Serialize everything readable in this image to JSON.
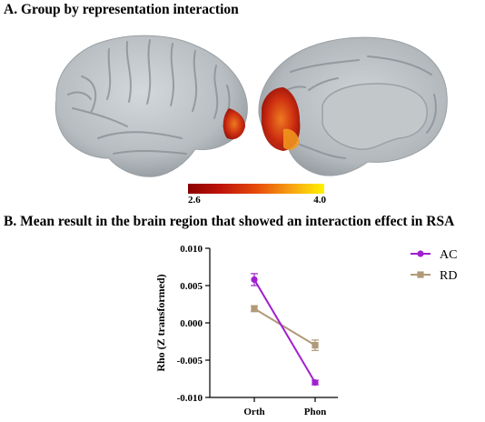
{
  "panel_a": {
    "title": "A. Group by representation interaction",
    "colorbar": {
      "min_label": "2.6",
      "max_label": "4.0",
      "colors": [
        "#8b0000",
        "#c0150a",
        "#e64a0a",
        "#f7a012",
        "#fff200"
      ]
    }
  },
  "panel_b": {
    "title": "B. Mean result in the brain region that showed an interaction effect in RSA"
  },
  "chart_data": {
    "type": "line",
    "categories": [
      "Orth",
      "Phon"
    ],
    "ylabel": "Rho (Z transformed)",
    "xlabel": "",
    "ylim": [
      -0.01,
      0.01
    ],
    "yticks": [
      "0.010",
      "0.005",
      "0.000",
      "-0.005",
      "-0.010"
    ],
    "ytick_values": [
      0.01,
      0.005,
      0.0,
      -0.005,
      -0.01
    ],
    "legend_position": "right",
    "series": [
      {
        "name": "AC",
        "color": "#a020d0",
        "marker": "circle",
        "values": [
          0.0058,
          -0.008
        ],
        "errors": [
          0.0008,
          0.0003
        ]
      },
      {
        "name": "RD",
        "color": "#b09a78",
        "marker": "square",
        "values": [
          0.0019,
          -0.003
        ],
        "errors": [
          0.0004,
          0.0007
        ]
      }
    ]
  }
}
